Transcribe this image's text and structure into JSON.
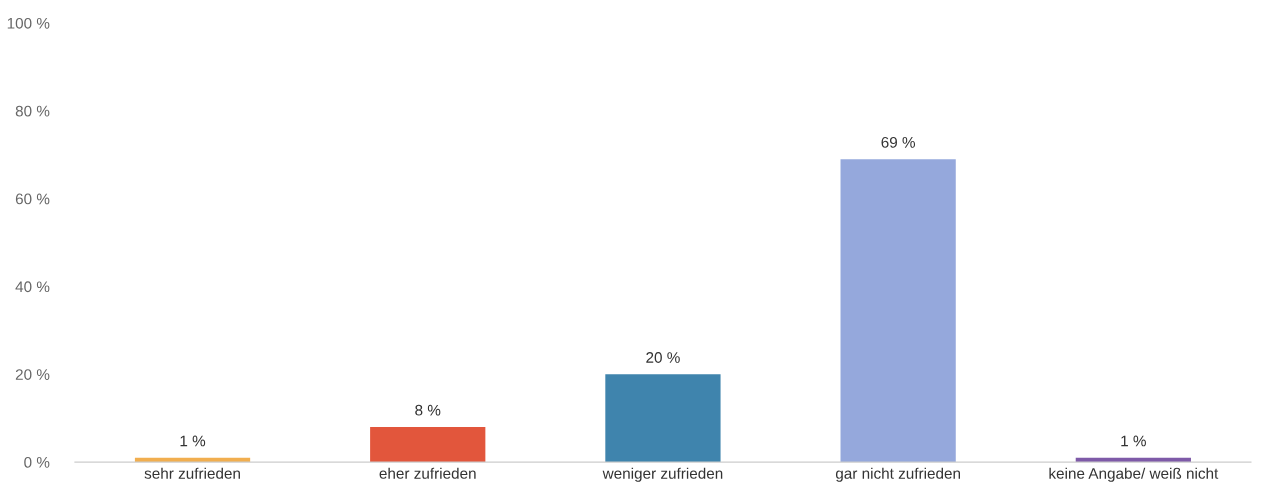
{
  "chart_data": {
    "type": "bar",
    "categories": [
      "sehr zufrieden",
      "eher zufrieden",
      "weniger zufrieden",
      "gar nicht zufrieden",
      "keine Angabe/ weiß nicht"
    ],
    "values": [
      1,
      8,
      20,
      69,
      1
    ],
    "colors": [
      "#f1ae4f",
      "#e2563c",
      "#3f84ad",
      "#95a8dc",
      "#7e5aa8"
    ],
    "value_labels": [
      "1 %",
      "8 %",
      "20 %",
      "69 %",
      "1 %"
    ],
    "ylim": [
      0,
      100
    ],
    "yticks": [
      {
        "value": 0,
        "label": "0 %"
      },
      {
        "value": 20,
        "label": "20 %"
      },
      {
        "value": 40,
        "label": "40 %"
      },
      {
        "value": 60,
        "label": "60 %"
      },
      {
        "value": 80,
        "label": "80 %"
      },
      {
        "value": 100,
        "label": "100 %"
      }
    ],
    "grid": false,
    "legend": false
  }
}
